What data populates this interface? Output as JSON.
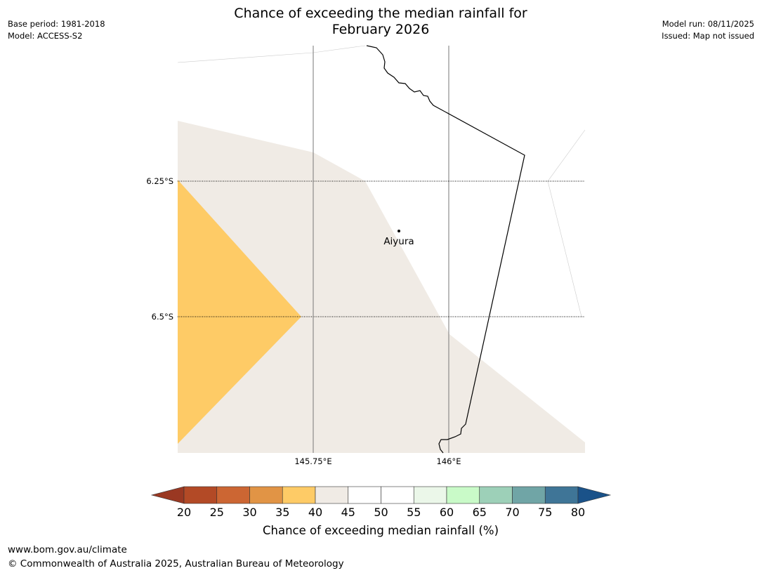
{
  "title": {
    "line1": "Chance of exceeding the median rainfall for",
    "line2": "February 2026"
  },
  "meta_left": {
    "base_period": "Base period: 1981-2018",
    "model": "Model: ACCESS-S2"
  },
  "meta_right": {
    "model_run": "Model run: 08/11/2025",
    "issued": "Issued: Map not issued"
  },
  "map": {
    "lat_labels": [
      "6.25°S",
      "6.5°S"
    ],
    "lon_labels": [
      "145.75°E",
      "146°E"
    ],
    "place": "Aiyura",
    "colors": {
      "land_mask": "#ffffff",
      "category_35_40": "#fecb66",
      "category_40_45": "#f0ebe5",
      "coastline": "#000000",
      "gridline": "#000000"
    }
  },
  "colorbar": {
    "label": "Chance of exceeding median rainfall (%)",
    "ticks": [
      "20",
      "25",
      "30",
      "35",
      "40",
      "45",
      "50",
      "55",
      "60",
      "65",
      "70",
      "75",
      "80"
    ],
    "under_color": "#9a3822",
    "over_color": "#1a5289",
    "colors": [
      "#b34a26",
      "#cc6633",
      "#e19445",
      "#fecb66",
      "#f0ebe5",
      "#ffffff",
      "#ffffff",
      "#ebf7e9",
      "#c9fac8",
      "#9dd0b8",
      "#70a5a6",
      "#3f7597"
    ]
  },
  "footer": {
    "url": "www.bom.gov.au/climate",
    "copyright": "© Commonwealth of Australia 2025, Australian Bureau of Meteorology"
  }
}
